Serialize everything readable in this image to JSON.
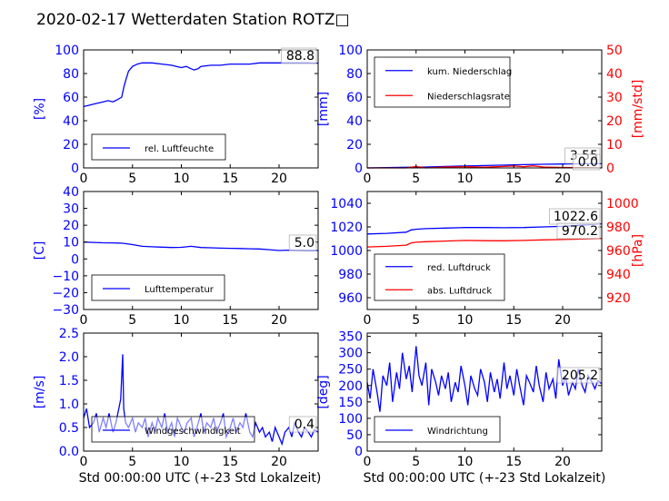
{
  "title": "2020-02-17 Wetterdaten Station ROTZ□",
  "xlabel": "Std 00:00:00 UTC (+-23 Std Lokalzeit)",
  "colors": {
    "blue": "#0000ff",
    "red": "#ff0000",
    "black": "#000000"
  },
  "chart_data": [
    {
      "type": "line",
      "id": "humidity",
      "ylabel": "[%]",
      "ylim": [
        0,
        100
      ],
      "yticks": [
        "0",
        "20",
        "40",
        "60",
        "80",
        "100"
      ],
      "xlim": [
        0,
        24
      ],
      "xticks": [
        "0",
        "5",
        "10",
        "15",
        "20"
      ],
      "legend_position": "lower-left",
      "last_value_label": "88.8",
      "series": [
        {
          "name": "rel. Luftfeuchte",
          "color": "#0000ff",
          "x": [
            0,
            0.5,
            1,
            1.5,
            2,
            2.5,
            3,
            3.5,
            3.9,
            4.1,
            4.3,
            4.6,
            5,
            5.5,
            6,
            7,
            8,
            9,
            9.5,
            10,
            10.5,
            11,
            11.3,
            11.7,
            12,
            13,
            14,
            15,
            16,
            17,
            18,
            19,
            20,
            21,
            22,
            23,
            24
          ],
          "y": [
            52,
            53,
            54,
            55,
            56,
            57,
            56,
            58,
            60,
            68,
            74,
            82,
            86,
            88,
            89,
            89,
            88,
            87,
            86,
            85,
            86,
            84,
            83,
            84,
            86,
            87,
            87,
            88,
            88,
            88,
            89,
            89,
            89,
            89,
            89,
            89,
            88.8
          ]
        }
      ]
    },
    {
      "type": "line",
      "id": "precipitation",
      "ylabel": "[mm]",
      "ylim": [
        0,
        100
      ],
      "yticks": [
        "0",
        "20",
        "40",
        "60",
        "80",
        "100"
      ],
      "y2label": "[mm/std]",
      "y2lim": [
        0,
        50
      ],
      "y2ticks": [
        "0",
        "10",
        "20",
        "30",
        "40",
        "50"
      ],
      "xlim": [
        0,
        24
      ],
      "xticks": [
        "0",
        "5",
        "10",
        "15",
        "20"
      ],
      "legend_position": "upper-left",
      "last_value_labels": [
        "3.55",
        "0.0"
      ],
      "series": [
        {
          "name": "kum. Niederschlag",
          "color": "#0000ff",
          "axis": "left",
          "x": [
            0,
            2,
            4,
            6,
            8,
            10,
            12,
            14,
            16,
            18,
            20,
            22,
            24
          ],
          "y": [
            0,
            0.2,
            0.5,
            0.8,
            1.2,
            1.6,
            2.0,
            2.4,
            2.8,
            3.1,
            3.3,
            3.5,
            3.55
          ]
        },
        {
          "name": "Niederschlagsrate",
          "color": "#ff0000",
          "axis": "right",
          "x": [
            0,
            4,
            5,
            6,
            8,
            10,
            12,
            14,
            15,
            16,
            17,
            18,
            20,
            22,
            24
          ],
          "y": [
            0,
            0,
            0.6,
            0,
            0.4,
            0.5,
            0.3,
            0.6,
            0.8,
            0.5,
            0.9,
            0.4,
            0.2,
            0.1,
            0
          ]
        }
      ]
    },
    {
      "type": "line",
      "id": "temperature",
      "ylabel": "[C]",
      "ylim": [
        -30,
        40
      ],
      "yticks": [
        "−30",
        "−20",
        "−10",
        "0",
        "10",
        "20",
        "30",
        "40"
      ],
      "xlim": [
        0,
        24
      ],
      "xticks": [
        "0",
        "5",
        "10",
        "15",
        "20"
      ],
      "legend_position": "lower-left",
      "last_value_label": "5.0",
      "series": [
        {
          "name": "Lufttemperatur",
          "color": "#0000ff",
          "x": [
            0,
            1,
            2,
            3,
            4,
            5,
            6,
            7,
            8,
            9,
            10,
            11,
            12,
            13,
            14,
            15,
            16,
            17,
            18,
            19,
            20,
            21,
            22,
            23,
            24
          ],
          "y": [
            10,
            9.8,
            9.6,
            9.5,
            9.3,
            8.5,
            7.5,
            7.2,
            7.0,
            6.8,
            6.9,
            7.5,
            6.8,
            6.6,
            6.4,
            6.3,
            6.2,
            6.0,
            5.9,
            5.5,
            5.0,
            5.2,
            5.1,
            5.0,
            5.0
          ]
        }
      ]
    },
    {
      "type": "line",
      "id": "pressure",
      "ylim": [
        950,
        1050
      ],
      "yticks": [
        "960",
        "980",
        "1000",
        "1020",
        "1040"
      ],
      "y2label": "[hPa]",
      "y2lim": [
        910,
        1010
      ],
      "y2ticks": [
        "920",
        "940",
        "960",
        "980",
        "1000"
      ],
      "xlim": [
        0,
        24
      ],
      "xticks": [
        "0",
        "5",
        "10",
        "15",
        "20"
      ],
      "legend_position": "lower-left",
      "last_value_labels": [
        "1022.6",
        "970.2"
      ],
      "series": [
        {
          "name": "red. Luftdruck",
          "color": "#0000ff",
          "axis": "left",
          "x": [
            0,
            2,
            4,
            4.5,
            5,
            6,
            8,
            10,
            12,
            14,
            16,
            18,
            20,
            22,
            24
          ],
          "y": [
            1014,
            1014.5,
            1015.5,
            1017.5,
            1018,
            1018.5,
            1019,
            1019.5,
            1019.5,
            1019.3,
            1019.5,
            1020,
            1020.5,
            1021.5,
            1022.6
          ]
        },
        {
          "name": "abs. Luftdruck",
          "color": "#ff0000",
          "axis": "right",
          "x": [
            0,
            2,
            4,
            4.5,
            5,
            6,
            8,
            10,
            12,
            14,
            16,
            18,
            20,
            22,
            24
          ],
          "y": [
            963,
            963.5,
            964.5,
            966.5,
            967,
            967.5,
            968,
            968.5,
            968.3,
            968.2,
            968.5,
            969,
            969.3,
            969.8,
            970.2
          ]
        }
      ]
    },
    {
      "type": "line",
      "id": "windspeed",
      "ylabel": "[m/s]",
      "ylim": [
        0,
        2.5
      ],
      "yticks": [
        "0.0",
        "0.5",
        "1.0",
        "1.5",
        "2.0",
        "2.5"
      ],
      "xlim": [
        0,
        24
      ],
      "xticks": [
        "0",
        "5",
        "10",
        "15",
        "20"
      ],
      "legend_position": "lower-left",
      "last_value_label": "0.4",
      "series": [
        {
          "name": "Windgeschwindigkeit",
          "color": "#0000ff",
          "x": [
            0,
            0.3,
            0.6,
            1,
            1.3,
            1.6,
            2,
            2.3,
            2.6,
            3,
            3.3,
            3.6,
            3.8,
            4.0,
            4.1,
            4.3,
            4.6,
            5,
            5.3,
            5.6,
            6,
            6.3,
            6.6,
            7,
            7.3,
            7.6,
            8,
            8.3,
            8.6,
            9,
            9.3,
            9.6,
            10,
            10.3,
            10.6,
            11,
            11.3,
            11.6,
            12,
            12.3,
            12.6,
            13,
            13.3,
            13.6,
            14,
            14.3,
            14.6,
            15,
            15.3,
            15.6,
            16,
            16.3,
            16.6,
            17,
            17.3,
            17.6,
            18,
            18.3,
            18.6,
            19,
            19.3,
            19.6,
            20,
            20.3,
            20.6,
            21,
            21.3,
            21.6,
            22,
            22.3,
            22.6,
            23,
            23.3,
            23.6,
            24
          ],
          "y": [
            0.7,
            0.9,
            0.5,
            0.6,
            0.8,
            0.4,
            0.7,
            0.5,
            0.8,
            0.4,
            0.6,
            0.9,
            1.1,
            2.05,
            0.9,
            0.6,
            0.5,
            0.7,
            0.4,
            0.6,
            0.5,
            0.7,
            0.3,
            0.6,
            0.4,
            0.7,
            0.5,
            0.8,
            0.4,
            0.6,
            0.3,
            0.7,
            0.5,
            0.4,
            0.6,
            0.7,
            0.3,
            0.5,
            0.8,
            0.4,
            0.6,
            0.5,
            0.7,
            0.4,
            0.6,
            0.8,
            0.3,
            0.5,
            0.7,
            0.4,
            0.6,
            0.5,
            0.8,
            0.4,
            0.3,
            0.6,
            0.4,
            0.5,
            0.3,
            0.4,
            0.2,
            0.5,
            0.3,
            0.15,
            0.4,
            0.5,
            0.3,
            0.6,
            0.4,
            0.3,
            0.5,
            0.4,
            0.3,
            0.45,
            0.4
          ]
        }
      ]
    },
    {
      "type": "line",
      "id": "winddirection",
      "ylabel": "[deg]",
      "ylim": [
        0,
        360
      ],
      "yticks": [
        "0",
        "50",
        "100",
        "150",
        "200",
        "250",
        "300",
        "350"
      ],
      "xlim": [
        0,
        24
      ],
      "xticks": [
        "0",
        "5",
        "10",
        "15",
        "20"
      ],
      "legend_position": "lower-left",
      "last_value_label": "205.2",
      "series": [
        {
          "name": "Windrichtung",
          "color": "#0000ff",
          "x": [
            0,
            0.3,
            0.6,
            1,
            1.3,
            1.6,
            2,
            2.3,
            2.6,
            3,
            3.3,
            3.6,
            4,
            4.3,
            4.6,
            5,
            5.3,
            5.6,
            6,
            6.3,
            6.6,
            7,
            7.3,
            7.6,
            8,
            8.3,
            8.6,
            9,
            9.3,
            9.6,
            10,
            10.3,
            10.6,
            11,
            11.3,
            11.6,
            12,
            12.3,
            12.6,
            13,
            13.3,
            13.6,
            14,
            14.3,
            14.6,
            15,
            15.3,
            15.6,
            16,
            16.3,
            16.6,
            17,
            17.3,
            17.6,
            18,
            18.3,
            18.6,
            19,
            19.3,
            19.6,
            20,
            20.3,
            20.6,
            21,
            21.3,
            21.6,
            22,
            22.3,
            22.6,
            23,
            23.3,
            23.6,
            24
          ],
          "y": [
            210,
            160,
            250,
            180,
            120,
            230,
            200,
            270,
            150,
            240,
            190,
            300,
            220,
            260,
            180,
            320,
            230,
            200,
            270,
            140,
            250,
            210,
            170,
            230,
            190,
            240,
            150,
            210,
            180,
            260,
            200,
            140,
            230,
            190,
            170,
            250,
            210,
            150,
            240,
            180,
            220,
            160,
            270,
            190,
            230,
            170,
            250,
            200,
            140,
            230,
            210,
            180,
            260,
            200,
            150,
            240,
            190,
            220,
            160,
            280,
            200,
            230,
            170,
            210,
            190,
            250,
            200,
            180,
            230,
            210,
            190,
            215,
            205.2
          ]
        }
      ]
    }
  ]
}
